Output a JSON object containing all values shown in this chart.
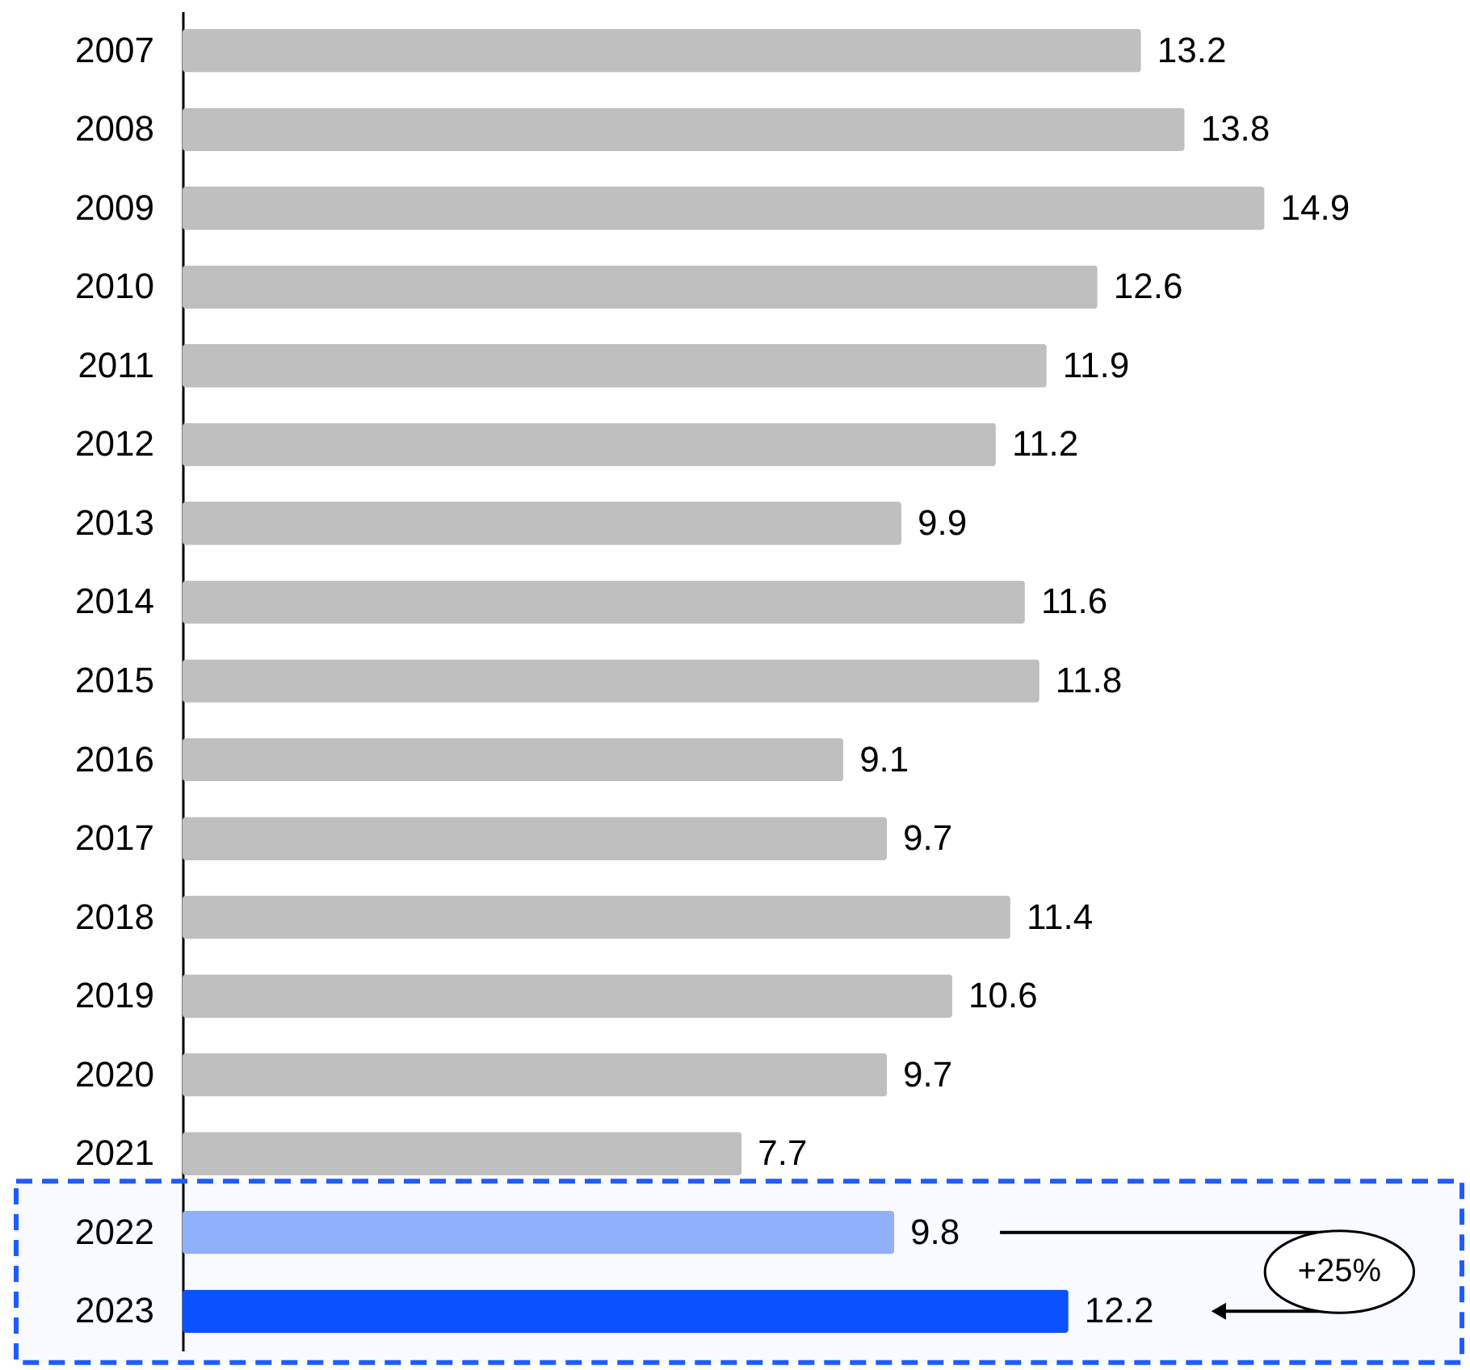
{
  "chart_data": {
    "type": "bar",
    "orientation": "horizontal",
    "categories": [
      "2007",
      "2008",
      "2009",
      "2010",
      "2011",
      "2012",
      "2013",
      "2014",
      "2015",
      "2016",
      "2017",
      "2018",
      "2019",
      "2020",
      "2021",
      "2022",
      "2023"
    ],
    "values": [
      13.2,
      13.8,
      14.9,
      12.6,
      11.9,
      11.2,
      9.9,
      11.6,
      11.8,
      9.1,
      9.7,
      11.4,
      10.6,
      9.7,
      7.7,
      9.8,
      12.2
    ],
    "colors": [
      "#bfbfbf",
      "#bfbfbf",
      "#bfbfbf",
      "#bfbfbf",
      "#bfbfbf",
      "#bfbfbf",
      "#bfbfbf",
      "#bfbfbf",
      "#bfbfbf",
      "#bfbfbf",
      "#bfbfbf",
      "#bfbfbf",
      "#bfbfbf",
      "#bfbfbf",
      "#bfbfbf",
      "#94b4fa",
      "#0a52ff"
    ],
    "data_labels": true,
    "tick_labels": "y",
    "annotations": [
      "+25%"
    ],
    "bands": [
      {
        "axis": "y",
        "from": "2022",
        "to": "2023",
        "color": "#1f5cff"
      }
    ]
  }
}
